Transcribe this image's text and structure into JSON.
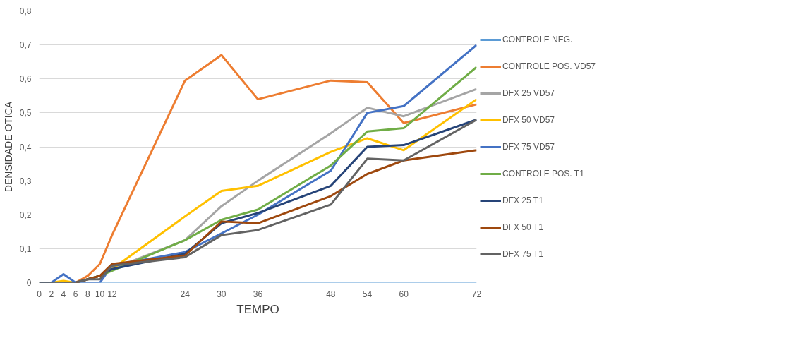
{
  "chart_data": {
    "type": "line",
    "xlabel": "TEMPO",
    "ylabel": "DENSIDADE OTICA",
    "x": [
      0,
      2,
      4,
      6,
      8,
      10,
      12,
      24,
      30,
      36,
      48,
      54,
      60,
      72
    ],
    "xlim": [
      0,
      72
    ],
    "xticks": [
      0,
      2,
      4,
      6,
      8,
      10,
      12,
      24,
      30,
      36,
      48,
      54,
      60,
      72
    ],
    "ylim": [
      0,
      0.8
    ],
    "yticks": [
      {
        "value": 0,
        "label": "0"
      },
      {
        "value": 0.1,
        "label": "0,1"
      },
      {
        "value": 0.2,
        "label": "0,2"
      },
      {
        "value": 0.3,
        "label": "0,3"
      },
      {
        "value": 0.4,
        "label": "0,4"
      },
      {
        "value": 0.5,
        "label": "0,5"
      },
      {
        "value": 0.6,
        "label": "0,6"
      },
      {
        "value": 0.7,
        "label": "0,7"
      },
      {
        "value": 0.8,
        "label": "0,8"
      }
    ],
    "grid": "y",
    "legend": "right",
    "marker": "none",
    "line_style": "solid",
    "series": [
      {
        "name": "CONTROLE NEG.",
        "color": "#5b9bd5",
        "values": [
          0,
          0,
          0,
          0,
          0,
          0,
          0,
          0,
          0,
          0,
          0,
          0,
          0,
          0
        ]
      },
      {
        "name": "CONTROLE POS. VD57",
        "color": "#ed7d31",
        "values": [
          null,
          null,
          0,
          0,
          0.02,
          0.055,
          0.14,
          0.595,
          0.67,
          0.54,
          0.595,
          0.59,
          0.47,
          0.525
        ]
      },
      {
        "name": "DFX 25 VD57",
        "color": "#a5a5a5",
        "values": [
          0,
          0,
          0,
          0,
          0.01,
          0.02,
          0.04,
          0.125,
          0.225,
          0.3,
          0.44,
          0.515,
          0.49,
          0.57
        ]
      },
      {
        "name": "DFX 50 VD57",
        "color": "#ffc000",
        "values": [
          0,
          0,
          0.005,
          0,
          0.01,
          0.02,
          0.04,
          0.195,
          0.27,
          0.285,
          0.385,
          0.425,
          0.39,
          0.54
        ]
      },
      {
        "name": "DFX 75 VD57",
        "color": "#4472c4",
        "values": [
          0,
          0,
          0.025,
          0,
          0,
          0,
          0.05,
          0.09,
          0.145,
          0.2,
          0.33,
          0.5,
          0.52,
          0.7
        ]
      },
      {
        "name": "CONTROLE POS. T1",
        "color": "#70ad47",
        "values": [
          null,
          null,
          null,
          null,
          0.01,
          0.02,
          0.035,
          0.125,
          0.185,
          0.215,
          0.345,
          0.445,
          0.455,
          0.635
        ]
      },
      {
        "name": "DFX 25 T1",
        "color": "#264478",
        "values": [
          0,
          0,
          0,
          0,
          0.01,
          0.02,
          0.04,
          0.085,
          0.175,
          0.205,
          0.285,
          0.4,
          0.405,
          0.48
        ]
      },
      {
        "name": "DFX 50 T1",
        "color": "#9e480e",
        "values": [
          null,
          null,
          null,
          0,
          0.01,
          0.02,
          0.055,
          0.08,
          0.18,
          0.175,
          0.255,
          0.32,
          0.36,
          0.39
        ]
      },
      {
        "name": "DFX 75 T1",
        "color": "#636363",
        "values": [
          0,
          0,
          0,
          0,
          0.01,
          0.01,
          0.05,
          0.075,
          0.14,
          0.155,
          0.23,
          0.365,
          0.36,
          0.48
        ]
      }
    ]
  }
}
